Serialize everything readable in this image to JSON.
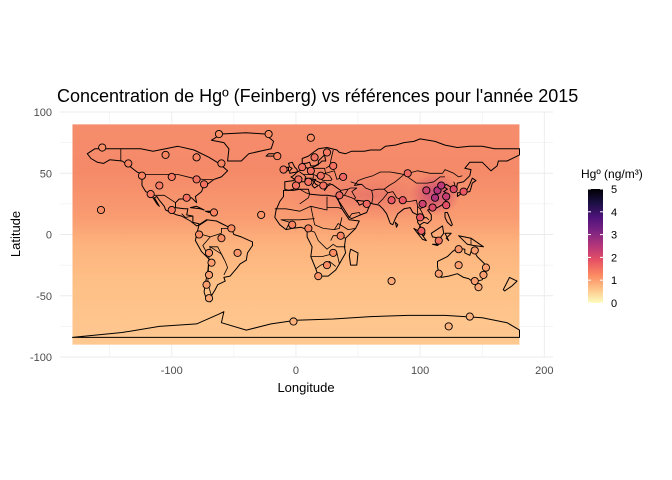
{
  "chart_data": {
    "type": "scatter",
    "title": "Concentration de Hgº (Feinberg) vs références pour l'année 2015",
    "xlabel": "Longitude",
    "ylabel": "Latitude",
    "x_ticks": [
      -100,
      0,
      100,
      200
    ],
    "x_tick_labels": [
      "-100",
      "0",
      "100",
      "200"
    ],
    "y_ticks": [
      100,
      50,
      0,
      -50,
      -100
    ],
    "y_tick_labels": [
      "100",
      "50",
      "0",
      "-50",
      "-100"
    ],
    "xlim": [
      -190,
      207
    ],
    "ylim": [
      -100,
      100
    ],
    "raster_extent": {
      "lon": [
        -180,
        180
      ],
      "lat": [
        -90,
        90
      ]
    },
    "grid": true,
    "background_map": "world country borders",
    "legend": {
      "title": "Hgº (ng/m³)",
      "placement": "right",
      "min": 0,
      "max": 5,
      "ticks": [
        0,
        1,
        2,
        3,
        4,
        5
      ],
      "tick_labels": [
        "0",
        "1",
        "2",
        "3",
        "4",
        "5"
      ],
      "colors": [
        "#fcfdbf",
        "#fec287",
        "#fb8861",
        "#e65164",
        "#b5367a",
        "#7e2482",
        "#4f127b",
        "#1c1044",
        "#000004"
      ]
    },
    "points": [
      {
        "lon": -62,
        "lat": 82,
        "value": 1.2
      },
      {
        "lon": -22,
        "lat": 82,
        "value": 1.2
      },
      {
        "lon": 12,
        "lat": 79,
        "value": 1.2
      },
      {
        "lon": -156,
        "lat": 71,
        "value": 1.2
      },
      {
        "lon": -105,
        "lat": 65,
        "value": 1.3
      },
      {
        "lon": -80,
        "lat": 63,
        "value": 1.3
      },
      {
        "lon": -60,
        "lat": 58,
        "value": 1.3
      },
      {
        "lon": -15,
        "lat": 64,
        "value": 1.3
      },
      {
        "lon": 15,
        "lat": 63,
        "value": 1.5
      },
      {
        "lon": 25,
        "lat": 67,
        "value": 1.4
      },
      {
        "lon": 5,
        "lat": 55,
        "value": 1.5
      },
      {
        "lon": 12,
        "lat": 52,
        "value": 1.5
      },
      {
        "lon": 20,
        "lat": 48,
        "value": 1.5
      },
      {
        "lon": 30,
        "lat": 56,
        "value": 1.5
      },
      {
        "lon": -10,
        "lat": 53,
        "value": 1.4
      },
      {
        "lon": 2,
        "lat": 45,
        "value": 1.5
      },
      {
        "lon": 0,
        "lat": 40,
        "value": 1.5
      },
      {
        "lon": 10,
        "lat": 43,
        "value": 1.5
      },
      {
        "lon": 22,
        "lat": 40,
        "value": 1.5
      },
      {
        "lon": 38,
        "lat": 47,
        "value": 1.6
      },
      {
        "lon": -135,
        "lat": 58,
        "value": 1.3
      },
      {
        "lon": -124,
        "lat": 48,
        "value": 1.3
      },
      {
        "lon": -110,
        "lat": 40,
        "value": 1.4
      },
      {
        "lon": -100,
        "lat": 47,
        "value": 1.4
      },
      {
        "lon": -80,
        "lat": 45,
        "value": 1.5
      },
      {
        "lon": -74,
        "lat": 41,
        "value": 1.5
      },
      {
        "lon": -88,
        "lat": 30,
        "value": 1.5
      },
      {
        "lon": -117,
        "lat": 33,
        "value": 1.4
      },
      {
        "lon": -157,
        "lat": 20,
        "value": 1.2
      },
      {
        "lon": -100,
        "lat": 20,
        "value": 1.4
      },
      {
        "lon": -66,
        "lat": 18,
        "value": 1.3
      },
      {
        "lon": -28,
        "lat": 16,
        "value": 1.1
      },
      {
        "lon": 35,
        "lat": 32,
        "value": 1.6
      },
      {
        "lon": 57,
        "lat": 25,
        "value": 1.6
      },
      {
        "lon": 77,
        "lat": 28,
        "value": 1.8
      },
      {
        "lon": 86,
        "lat": 28,
        "value": 1.8
      },
      {
        "lon": 90,
        "lat": 50,
        "value": 1.6
      },
      {
        "lon": 105,
        "lat": 36,
        "value": 2.2
      },
      {
        "lon": 114,
        "lat": 36,
        "value": 2.5
      },
      {
        "lon": 117,
        "lat": 40,
        "value": 2.4
      },
      {
        "lon": 121,
        "lat": 31,
        "value": 2.3
      },
      {
        "lon": 127,
        "lat": 37,
        "value": 2.0
      },
      {
        "lon": 135,
        "lat": 35,
        "value": 1.8
      },
      {
        "lon": 102,
        "lat": 25,
        "value": 2.2
      },
      {
        "lon": 110,
        "lat": 22,
        "value": 2.0
      },
      {
        "lon": 121,
        "lat": 24,
        "value": 1.9
      },
      {
        "lon": 100,
        "lat": 14,
        "value": 1.8
      },
      {
        "lon": 101,
        "lat": 3,
        "value": 1.7
      },
      {
        "lon": 115,
        "lat": -5,
        "value": 1.5
      },
      {
        "lon": 112,
        "lat": 30,
        "value": 2.6
      },
      {
        "lon": -60,
        "lat": -3,
        "value": 1.2
      },
      {
        "lon": -52,
        "lat": 5,
        "value": 1.2
      },
      {
        "lon": -78,
        "lat": 0,
        "value": 1.2
      },
      {
        "lon": -47,
        "lat": -15,
        "value": 1.1
      },
      {
        "lon": -70,
        "lat": -15,
        "value": 1.1
      },
      {
        "lon": -68,
        "lat": -23,
        "value": 1.0
      },
      {
        "lon": -70,
        "lat": -33,
        "value": 1.0
      },
      {
        "lon": -72,
        "lat": -41,
        "value": 1.0
      },
      {
        "lon": -70,
        "lat": -52,
        "value": 0.9
      },
      {
        "lon": -3,
        "lat": 8,
        "value": 1.3
      },
      {
        "lon": 10,
        "lat": 5,
        "value": 1.3
      },
      {
        "lon": 36,
        "lat": -1,
        "value": 1.3
      },
      {
        "lon": 30,
        "lat": -15,
        "value": 1.2
      },
      {
        "lon": 25,
        "lat": -25,
        "value": 1.2
      },
      {
        "lon": 18,
        "lat": -34,
        "value": 1.1
      },
      {
        "lon": 77,
        "lat": -38,
        "value": 0.9
      },
      {
        "lon": 147,
        "lat": -43,
        "value": 0.9
      },
      {
        "lon": 131,
        "lat": -12,
        "value": 1.1
      },
      {
        "lon": 131,
        "lat": -25,
        "value": 1.0
      },
      {
        "lon": 115,
        "lat": -32,
        "value": 1.0
      },
      {
        "lon": 151,
        "lat": -33,
        "value": 1.0
      },
      {
        "lon": 153,
        "lat": -27,
        "value": 1.0
      },
      {
        "lon": 144,
        "lat": -38,
        "value": 1.0
      },
      {
        "lon": 144,
        "lat": -13,
        "value": 1.0
      },
      {
        "lon": -2,
        "lat": -71,
        "value": 0.8
      },
      {
        "lon": 123,
        "lat": -75,
        "value": 0.8
      },
      {
        "lon": 140,
        "lat": -67,
        "value": 0.8
      }
    ]
  }
}
